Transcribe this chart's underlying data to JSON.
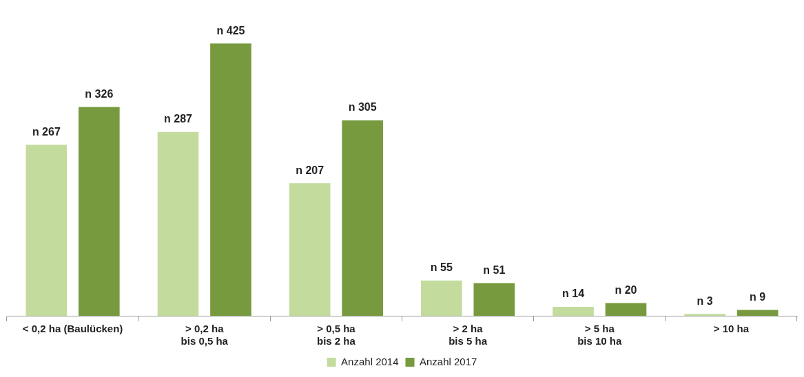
{
  "chart_data": {
    "type": "bar",
    "categories": [
      "< 0,2 ha (Baulücken)",
      "> 0,2 ha\nbis 0,5 ha",
      "> 0,5 ha\nbis 2 ha",
      "> 2 ha\nbis 5 ha",
      "> 5 ha\nbis 10 ha",
      "> 10 ha"
    ],
    "series": [
      {
        "name": "Anzahl 2014",
        "color": "#c3dc9d",
        "values": [
          267,
          287,
          207,
          55,
          14,
          3
        ],
        "value_labels": [
          "n 267",
          "n 287",
          "n 207",
          "n 55",
          "n 14",
          "n 3"
        ]
      },
      {
        "name": "Anzahl 2017",
        "color": "#779a3e",
        "values": [
          326,
          425,
          305,
          51,
          20,
          9
        ],
        "value_labels": [
          "n 326",
          "n 425",
          "n 305",
          "n 51",
          "n 20",
          "n 9"
        ]
      }
    ],
    "legend": "bottom"
  }
}
